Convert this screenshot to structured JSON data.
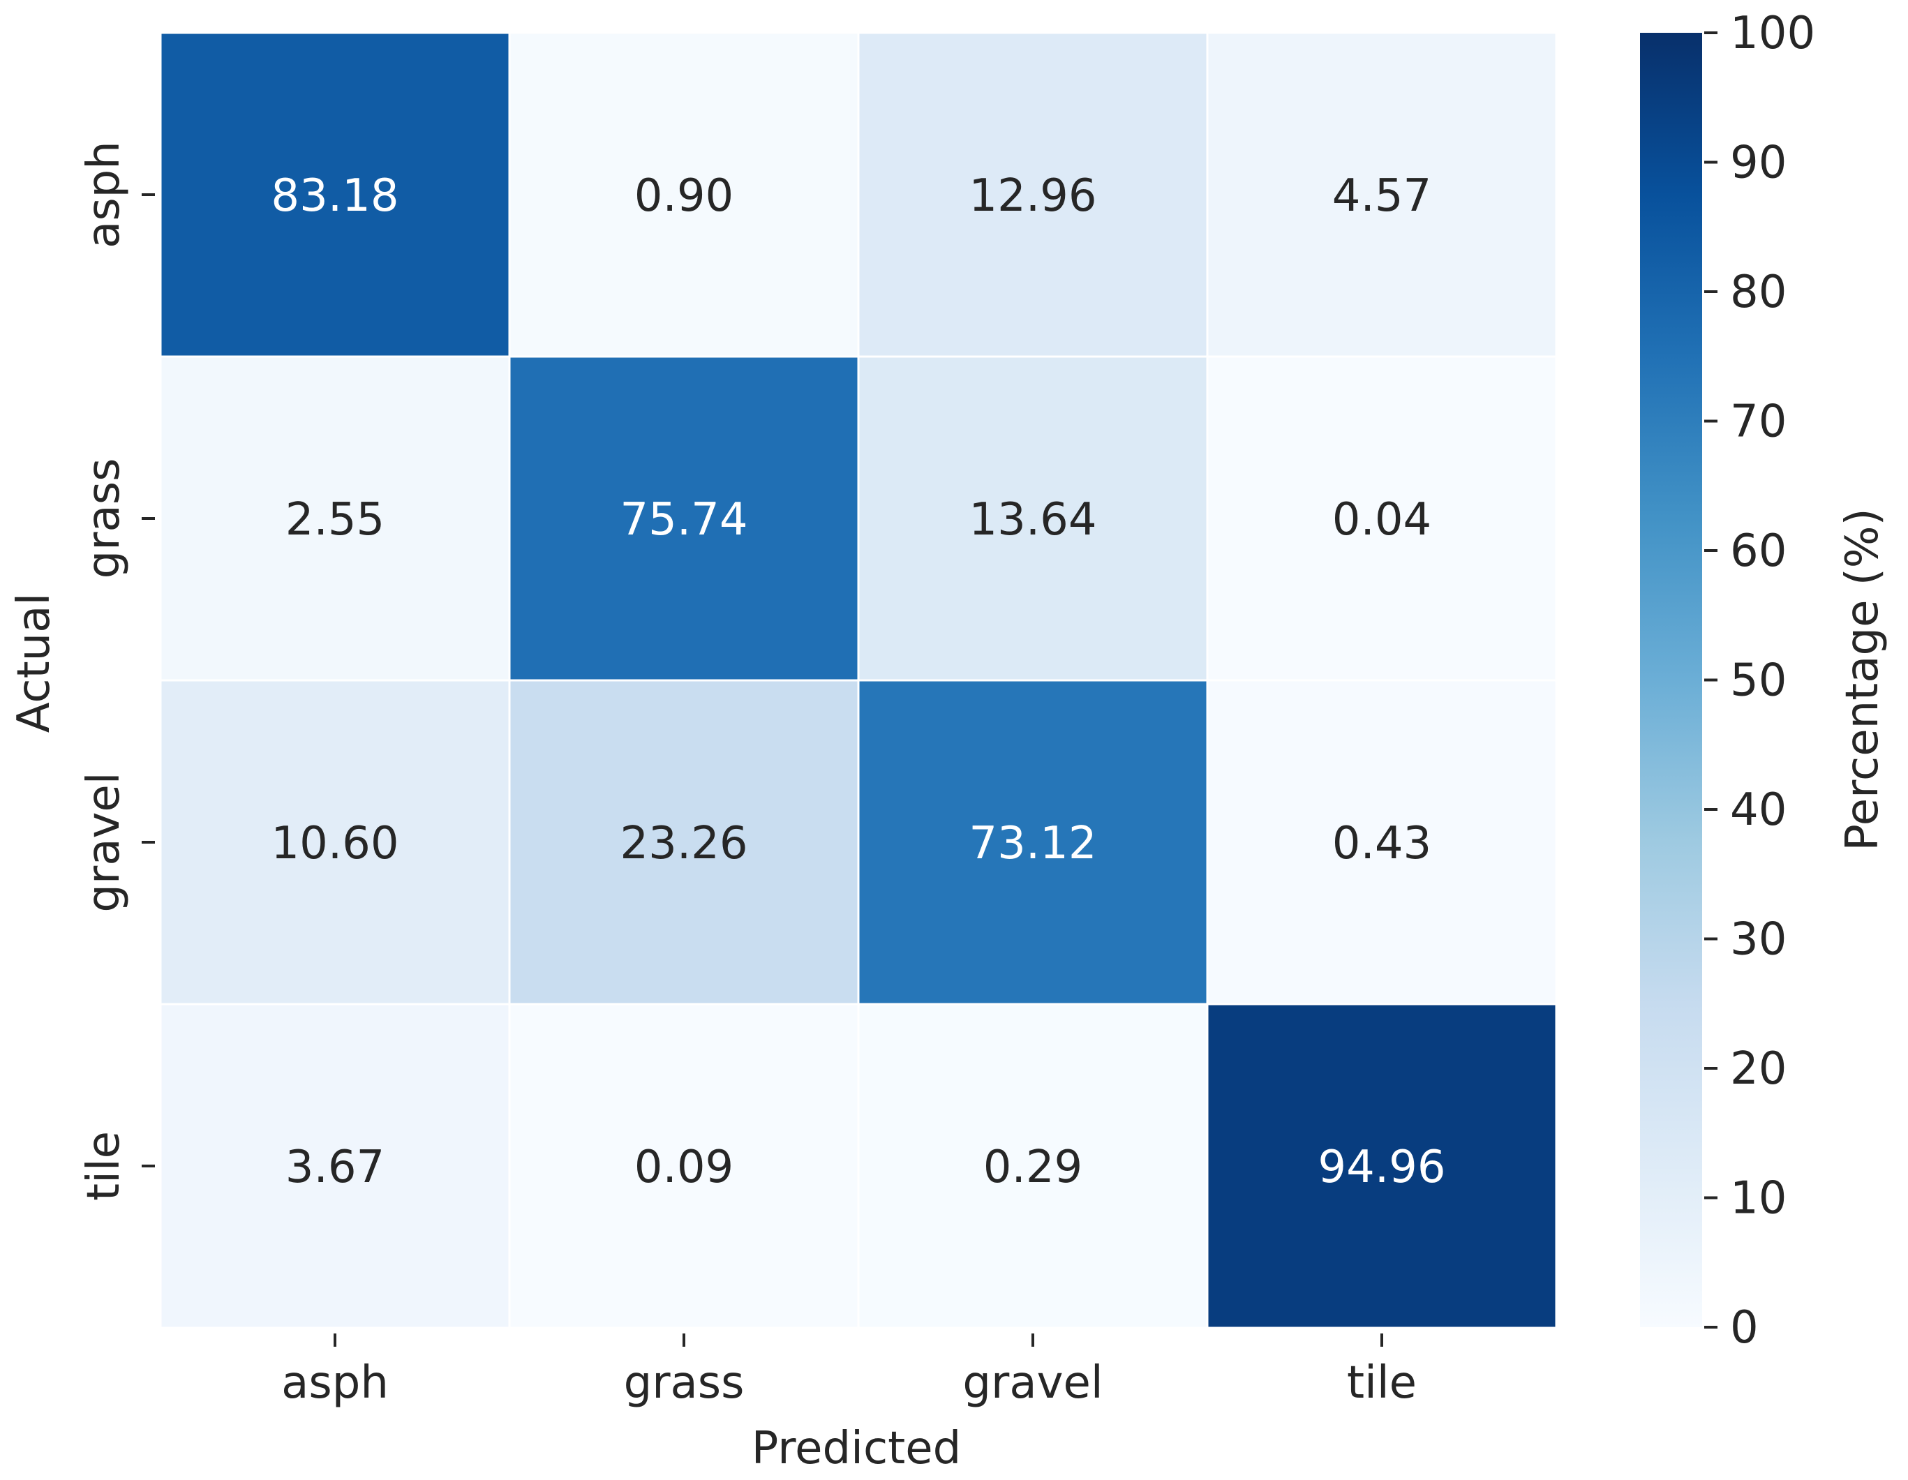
{
  "chart_data": {
    "type": "heatmap",
    "title": "",
    "xlabel": "Predicted",
    "ylabel": "Actual",
    "x_categories": [
      "asph",
      "grass",
      "gravel",
      "tile"
    ],
    "y_categories": [
      "asph",
      "grass",
      "gravel",
      "tile"
    ],
    "values": [
      [
        83.18,
        0.9,
        12.96,
        4.57
      ],
      [
        2.55,
        75.74,
        13.64,
        0.04
      ],
      [
        10.6,
        23.26,
        73.12,
        0.43
      ],
      [
        3.67,
        0.09,
        0.29,
        94.96
      ]
    ],
    "value_labels": [
      [
        "83.18",
        "0.90",
        "12.96",
        "4.57"
      ],
      [
        "2.55",
        "75.74",
        "13.64",
        "0.04"
      ],
      [
        "10.60",
        "23.26",
        "73.12",
        "0.43"
      ],
      [
        "3.67",
        "0.09",
        "0.29",
        "94.96"
      ]
    ],
    "colorbar": {
      "label": "Percentage (%)",
      "range": [
        0,
        100
      ],
      "ticks": [
        0,
        10,
        20,
        30,
        40,
        50,
        60,
        70,
        80,
        90,
        100
      ],
      "colormap": "Blues"
    },
    "grid": false
  }
}
